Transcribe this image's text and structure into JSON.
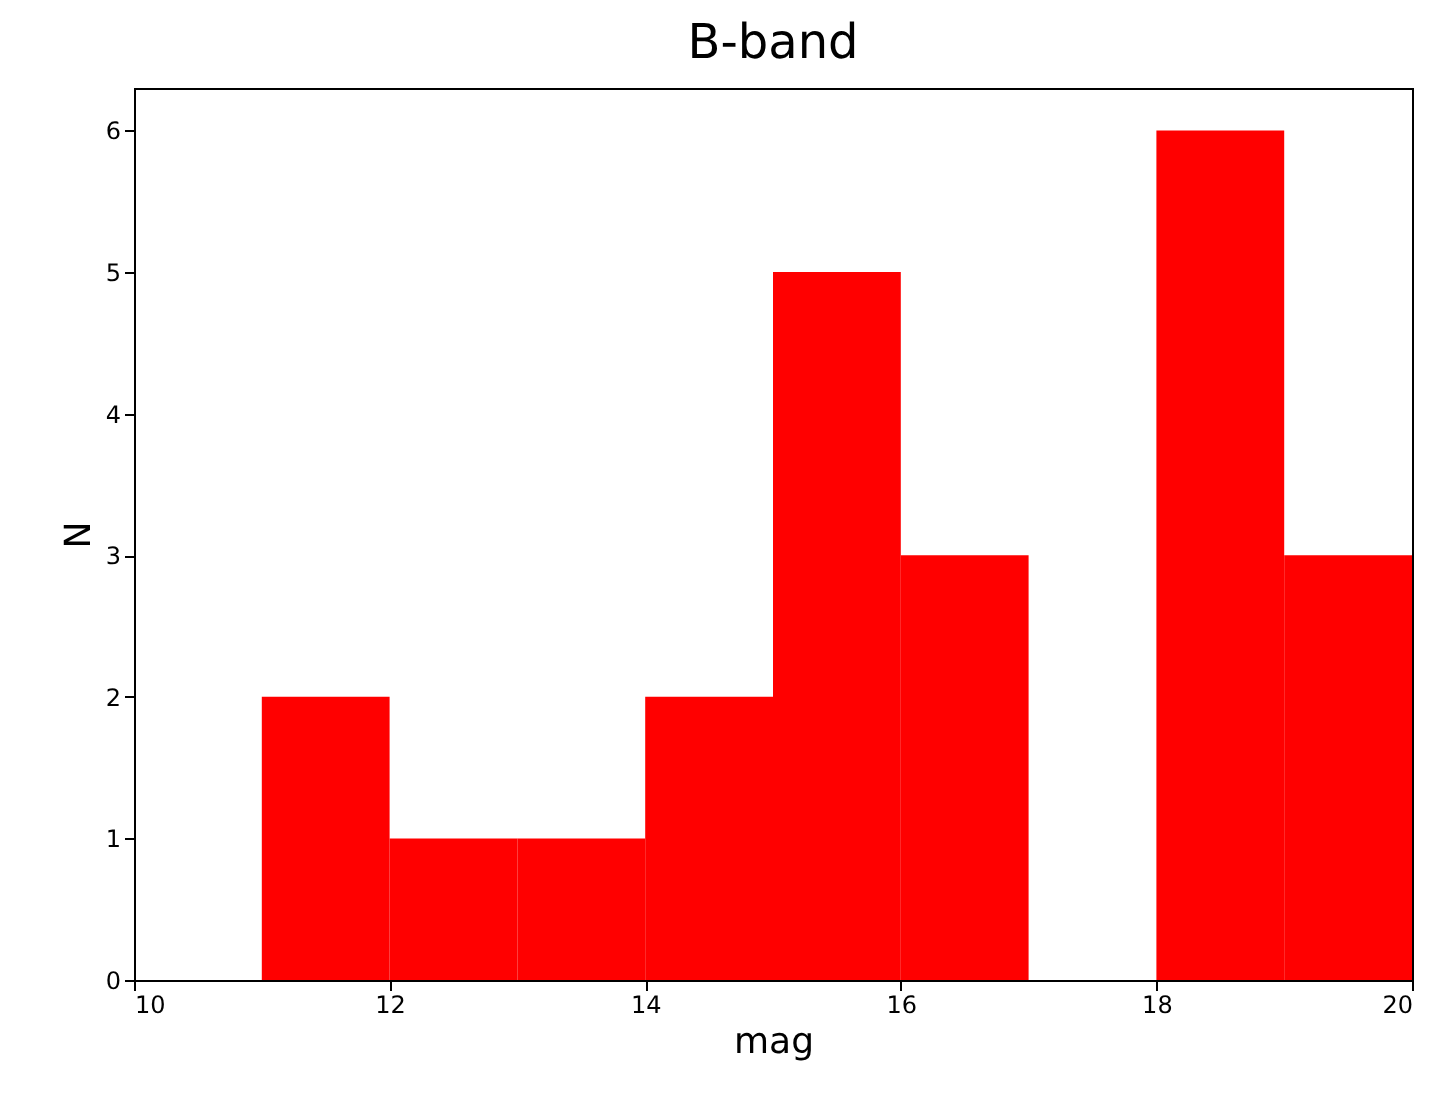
{
  "chart_data": {
    "type": "histogram",
    "title": "B-band",
    "xlabel": "mag",
    "ylabel": "N",
    "bins": [
      11,
      12,
      13,
      14,
      15,
      16,
      17,
      18,
      19,
      20
    ],
    "values": [
      2,
      1,
      1,
      2,
      5,
      3,
      0,
      6,
      3
    ],
    "color": "#ff0000",
    "xlim": [
      10,
      20
    ],
    "xticks": [
      10,
      12,
      14,
      16,
      18,
      20
    ],
    "ylim": [
      0,
      6.3
    ],
    "yticks": [
      0,
      1,
      2,
      3,
      4,
      5,
      6
    ]
  }
}
